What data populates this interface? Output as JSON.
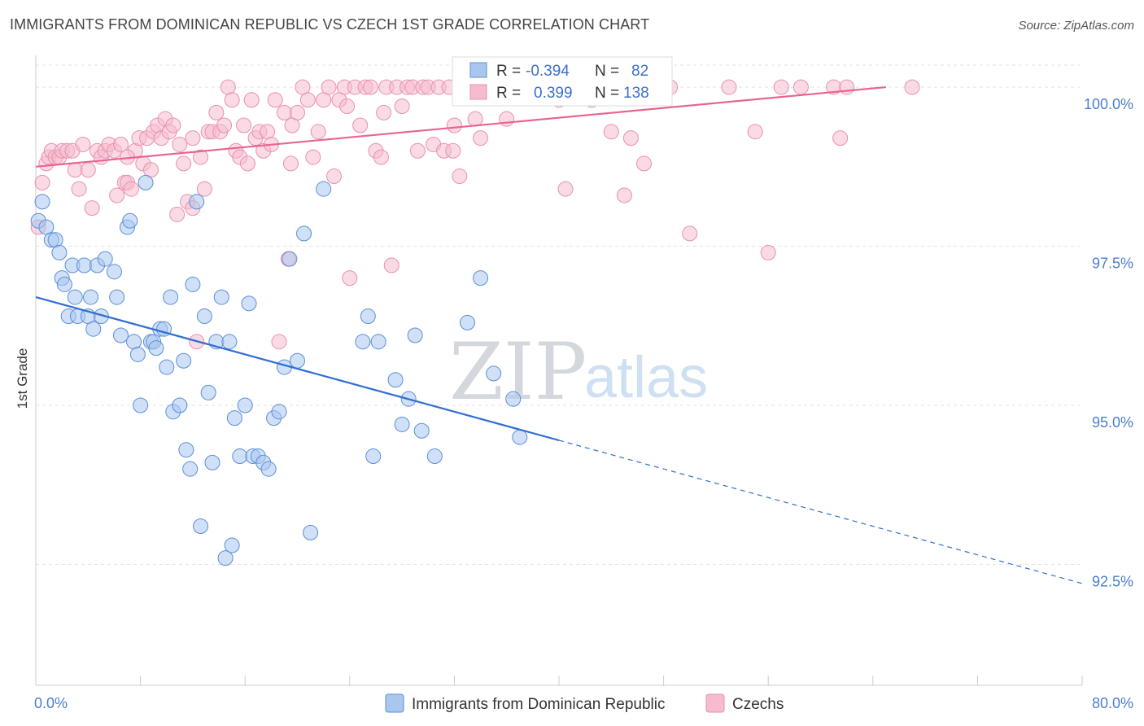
{
  "header": {
    "title": "IMMIGRANTS FROM DOMINICAN REPUBLIC VS CZECH 1ST GRADE CORRELATION CHART",
    "source": "Source: ZipAtlas.com"
  },
  "watermark": {
    "zip": "ZIP",
    "atlas": "atlas"
  },
  "colors": {
    "blue_fill": "#a9c6ef",
    "blue_stroke": "#5b8fd8",
    "blue_line": "#2f6fd3",
    "pink_fill": "#f6bccd",
    "pink_stroke": "#e891ad",
    "pink_line": "#e8648e",
    "axis_text": "#4a7fd0",
    "grid": "#e3e3e3"
  },
  "stats": {
    "blue": {
      "r_label": "R =",
      "r_value": "-0.394",
      "n_label": "N =",
      "n_value": "82"
    },
    "pink": {
      "r_label": "R =",
      "r_value": "0.399",
      "n_label": "N =",
      "n_value": "138"
    }
  },
  "chart_data": {
    "type": "scatter",
    "title": "IMMIGRANTS FROM DOMINICAN REPUBLIC VS CZECH 1ST GRADE CORRELATION CHART",
    "xlabel": "",
    "ylabel": "1st Grade",
    "xlim": [
      0,
      80
    ],
    "ylim": [
      90.6,
      100.5
    ],
    "x_tick_labels": [
      "0.0%",
      "80.0%"
    ],
    "y_ticks": [
      92.5,
      95.0,
      97.5,
      100.0
    ],
    "y_tick_labels": [
      "92.5%",
      "95.0%",
      "97.5%",
      "100.0%"
    ],
    "grid": true,
    "legend_position": "bottom",
    "series": [
      {
        "name": "Immigrants from Dominican Republic",
        "color": "#a9c6ef",
        "trend": {
          "x": [
            0,
            40
          ],
          "y": [
            96.7,
            94.45
          ],
          "dashed_to": [
            80,
            92.2
          ]
        },
        "points": [
          [
            0.2,
            97.9
          ],
          [
            0.5,
            98.2
          ],
          [
            0.8,
            97.8
          ],
          [
            1.2,
            97.6
          ],
          [
            1.5,
            97.6
          ],
          [
            1.8,
            97.4
          ],
          [
            2.0,
            97.0
          ],
          [
            2.2,
            96.9
          ],
          [
            2.5,
            96.4
          ],
          [
            2.8,
            97.2
          ],
          [
            3.0,
            96.7
          ],
          [
            3.2,
            96.4
          ],
          [
            3.7,
            97.2
          ],
          [
            4.0,
            96.4
          ],
          [
            4.2,
            96.7
          ],
          [
            4.4,
            96.2
          ],
          [
            4.7,
            97.2
          ],
          [
            5.0,
            96.4
          ],
          [
            5.3,
            97.3
          ],
          [
            6.0,
            97.1
          ],
          [
            6.2,
            96.7
          ],
          [
            6.5,
            96.1
          ],
          [
            7.0,
            97.8
          ],
          [
            7.2,
            97.9
          ],
          [
            7.5,
            96.0
          ],
          [
            7.8,
            95.8
          ],
          [
            8.4,
            98.5
          ],
          [
            8.0,
            95.0
          ],
          [
            8.8,
            96.0
          ],
          [
            9.0,
            96.0
          ],
          [
            9.2,
            95.9
          ],
          [
            9.5,
            96.2
          ],
          [
            9.8,
            96.2
          ],
          [
            10.0,
            95.6
          ],
          [
            10.3,
            96.7
          ],
          [
            10.5,
            94.9
          ],
          [
            11.0,
            95.0
          ],
          [
            11.3,
            95.7
          ],
          [
            11.5,
            94.3
          ],
          [
            11.8,
            94.0
          ],
          [
            12.0,
            96.9
          ],
          [
            12.3,
            98.2
          ],
          [
            12.6,
            93.1
          ],
          [
            12.9,
            96.4
          ],
          [
            13.2,
            95.2
          ],
          [
            13.5,
            94.1
          ],
          [
            13.8,
            96.0
          ],
          [
            14.2,
            96.7
          ],
          [
            14.8,
            96.0
          ],
          [
            15.2,
            94.8
          ],
          [
            15.6,
            94.2
          ],
          [
            16.0,
            95.0
          ],
          [
            16.3,
            96.6
          ],
          [
            16.6,
            94.2
          ],
          [
            17.0,
            94.2
          ],
          [
            17.4,
            94.1
          ],
          [
            17.8,
            94.0
          ],
          [
            18.2,
            94.8
          ],
          [
            18.6,
            94.9
          ],
          [
            19.0,
            95.6
          ],
          [
            19.4,
            97.3
          ],
          [
            20.0,
            95.7
          ],
          [
            20.5,
            97.7
          ],
          [
            21.0,
            93.0
          ],
          [
            22.0,
            98.4
          ],
          [
            25.0,
            96.0
          ],
          [
            25.4,
            96.4
          ],
          [
            25.8,
            94.2
          ],
          [
            26.2,
            96.0
          ],
          [
            27.5,
            95.4
          ],
          [
            28.0,
            94.7
          ],
          [
            28.5,
            95.1
          ],
          [
            29.0,
            96.1
          ],
          [
            29.5,
            94.6
          ],
          [
            30.5,
            94.2
          ],
          [
            33.0,
            96.3
          ],
          [
            34.0,
            97.0
          ],
          [
            35.0,
            95.5
          ],
          [
            36.5,
            95.1
          ],
          [
            37.0,
            94.5
          ],
          [
            14.5,
            92.6
          ],
          [
            15.0,
            92.8
          ]
        ]
      },
      {
        "name": "Czechs",
        "color": "#f6bccd",
        "trend": {
          "x": [
            0,
            65
          ],
          "y": [
            98.75,
            100.0
          ]
        },
        "points": [
          [
            0.2,
            97.8
          ],
          [
            0.5,
            98.5
          ],
          [
            0.8,
            98.8
          ],
          [
            1.0,
            98.9
          ],
          [
            1.2,
            99.0
          ],
          [
            1.5,
            98.9
          ],
          [
            1.8,
            98.9
          ],
          [
            2.0,
            99.0
          ],
          [
            2.4,
            99.0
          ],
          [
            2.8,
            99.0
          ],
          [
            3.0,
            98.7
          ],
          [
            3.3,
            98.4
          ],
          [
            3.6,
            99.1
          ],
          [
            4.0,
            98.7
          ],
          [
            4.3,
            98.1
          ],
          [
            4.7,
            99.0
          ],
          [
            5.0,
            98.9
          ],
          [
            5.3,
            99.0
          ],
          [
            5.6,
            99.1
          ],
          [
            6.0,
            99.0
          ],
          [
            6.2,
            98.3
          ],
          [
            6.5,
            99.1
          ],
          [
            6.8,
            98.5
          ],
          [
            7.0,
            98.5
          ],
          [
            7.3,
            98.4
          ],
          [
            7.6,
            99.0
          ],
          [
            7.9,
            99.2
          ],
          [
            8.2,
            98.8
          ],
          [
            8.5,
            99.2
          ],
          [
            8.8,
            98.7
          ],
          [
            9.0,
            99.3
          ],
          [
            9.3,
            99.4
          ],
          [
            9.6,
            99.2
          ],
          [
            9.9,
            99.5
          ],
          [
            10.2,
            99.3
          ],
          [
            10.5,
            99.4
          ],
          [
            10.8,
            98.0
          ],
          [
            11.0,
            99.1
          ],
          [
            11.3,
            98.8
          ],
          [
            11.6,
            98.2
          ],
          [
            12.0,
            98.1
          ],
          [
            12.3,
            96.0
          ],
          [
            12.6,
            98.9
          ],
          [
            12.9,
            98.4
          ],
          [
            13.2,
            99.3
          ],
          [
            13.5,
            99.3
          ],
          [
            13.8,
            99.6
          ],
          [
            14.1,
            99.3
          ],
          [
            14.4,
            99.4
          ],
          [
            14.7,
            100.0
          ],
          [
            15.0,
            99.8
          ],
          [
            15.3,
            99.0
          ],
          [
            15.6,
            98.9
          ],
          [
            15.9,
            99.4
          ],
          [
            16.2,
            98.8
          ],
          [
            16.5,
            99.8
          ],
          [
            16.8,
            99.2
          ],
          [
            17.1,
            99.3
          ],
          [
            17.4,
            99.0
          ],
          [
            17.7,
            99.3
          ],
          [
            18.0,
            99.1
          ],
          [
            18.3,
            99.8
          ],
          [
            18.6,
            96.0
          ],
          [
            19.0,
            99.6
          ],
          [
            19.3,
            97.3
          ],
          [
            19.6,
            99.4
          ],
          [
            20.0,
            99.6
          ],
          [
            20.4,
            100.0
          ],
          [
            20.8,
            99.8
          ],
          [
            21.2,
            98.9
          ],
          [
            21.6,
            99.3
          ],
          [
            22.0,
            99.8
          ],
          [
            22.4,
            100.0
          ],
          [
            22.8,
            98.6
          ],
          [
            23.2,
            99.8
          ],
          [
            23.6,
            100.0
          ],
          [
            24.0,
            97.0
          ],
          [
            24.4,
            100.0
          ],
          [
            24.8,
            99.4
          ],
          [
            25.2,
            100.0
          ],
          [
            25.6,
            100.0
          ],
          [
            26.0,
            99.0
          ],
          [
            26.4,
            98.9
          ],
          [
            26.8,
            100.0
          ],
          [
            27.2,
            97.2
          ],
          [
            27.6,
            100.0
          ],
          [
            28.0,
            99.7
          ],
          [
            28.4,
            100.0
          ],
          [
            28.8,
            100.0
          ],
          [
            29.2,
            99.0
          ],
          [
            29.6,
            100.0
          ],
          [
            30.0,
            100.0
          ],
          [
            30.4,
            99.1
          ],
          [
            30.8,
            100.0
          ],
          [
            31.2,
            99.0
          ],
          [
            31.6,
            100.0
          ],
          [
            32.0,
            99.4
          ],
          [
            32.4,
            98.6
          ],
          [
            32.8,
            100.0
          ],
          [
            33.2,
            100.0
          ],
          [
            33.6,
            99.5
          ],
          [
            34.0,
            99.2
          ],
          [
            34.4,
            100.0
          ],
          [
            34.8,
            100.0
          ],
          [
            35.2,
            100.0
          ],
          [
            35.6,
            100.0
          ],
          [
            36.0,
            99.5
          ],
          [
            36.4,
            100.0
          ],
          [
            36.8,
            100.0
          ],
          [
            37.2,
            100.0
          ],
          [
            38.0,
            100.0
          ],
          [
            40.5,
            98.4
          ],
          [
            42.0,
            100.0
          ],
          [
            43.0,
            100.0
          ],
          [
            44.0,
            99.3
          ],
          [
            45.0,
            98.3
          ],
          [
            46.5,
            98.8
          ],
          [
            47.5,
            100.0
          ],
          [
            48.5,
            100.0
          ],
          [
            50.0,
            97.7
          ],
          [
            53.0,
            100.0
          ],
          [
            55.0,
            99.3
          ],
          [
            56.0,
            97.4
          ],
          [
            57.0,
            100.0
          ],
          [
            58.5,
            100.0
          ],
          [
            61.0,
            100.0
          ],
          [
            61.5,
            99.2
          ],
          [
            62.0,
            100.0
          ],
          [
            67.0,
            100.0
          ],
          [
            19.5,
            98.8
          ],
          [
            26.6,
            99.6
          ],
          [
            31.9,
            99.0
          ],
          [
            12.0,
            99.2
          ],
          [
            7.0,
            98.9
          ],
          [
            23.8,
            99.7
          ],
          [
            40.0,
            99.8
          ],
          [
            42.5,
            99.8
          ],
          [
            45.5,
            99.2
          ]
        ]
      }
    ]
  }
}
